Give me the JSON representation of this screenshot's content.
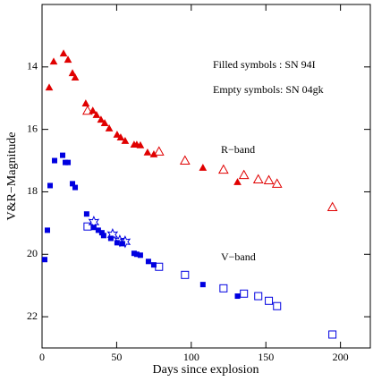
{
  "chart_data": {
    "type": "scatter",
    "xlabel": "Days since explosion",
    "ylabel": "V&R−Magnitude",
    "annotations": [
      "Filled symbols : SN 94I",
      "Empty symbols: SN 04gk",
      "R−band",
      "V−band"
    ],
    "xlim": [
      0,
      220
    ],
    "xticks": [
      0,
      50,
      100,
      150,
      200
    ],
    "ylim": [
      23,
      12
    ],
    "yticks": [
      14,
      16,
      18,
      20,
      22
    ],
    "series": [
      {
        "marker": "triangle",
        "filled": true,
        "color": "#e00000",
        "x": [
          4.8,
          7.8,
          14.4,
          17.4,
          20.4,
          22.2,
          29.3,
          34,
          36.5,
          39.5,
          42,
          45,
          50.3,
          52.7,
          55.7,
          61.7,
          63.5,
          65.9,
          70.7,
          74.9,
          107.8,
          131
        ],
        "values": [
          14.66,
          13.83,
          13.57,
          13.77,
          14.2,
          14.34,
          15.17,
          15.4,
          15.54,
          15.69,
          15.8,
          15.97,
          16.17,
          16.26,
          16.37,
          16.49,
          16.49,
          16.51,
          16.74,
          16.8,
          17.23,
          17.69
        ]
      },
      {
        "marker": "triangle",
        "filled": false,
        "color": "#e00000",
        "x": [
          30.5,
          78.4,
          95.8,
          121.6,
          135.3,
          144.9,
          152,
          157.5,
          194.6
        ],
        "values": [
          15.4,
          16.71,
          17.0,
          17.29,
          17.46,
          17.6,
          17.63,
          17.74,
          18.49
        ]
      },
      {
        "marker": "square",
        "filled": true,
        "color": "#0000e0",
        "x": [
          1.8,
          3.6,
          5.4,
          8.4,
          13.8,
          15.6,
          17.4,
          20.4,
          22.2,
          29.9,
          34.7,
          37.7,
          40.1,
          41.3,
          46.1,
          50.3,
          53.9,
          61.7,
          63.5,
          65.9,
          71.3,
          74.9,
          107.8,
          131
        ],
        "values": [
          20.17,
          19.23,
          17.8,
          17.0,
          16.83,
          17.06,
          17.06,
          17.74,
          17.86,
          18.71,
          19.14,
          19.23,
          19.31,
          19.4,
          19.49,
          19.63,
          19.66,
          19.97,
          20.0,
          20.03,
          20.23,
          20.34,
          20.97,
          21.34
        ]
      },
      {
        "marker": "square",
        "filled": false,
        "color": "#0000e0",
        "x": [
          30.5,
          78.4,
          95.8,
          121.6,
          135.3,
          144.9,
          152,
          157.5,
          194.6
        ],
        "values": [
          19.11,
          20.4,
          20.66,
          21.09,
          21.26,
          21.34,
          21.49,
          21.66,
          22.57
        ]
      },
      {
        "marker": "star",
        "filled": false,
        "color": "#0000e0",
        "x": [
          34.7,
          47.3,
          52.1,
          55.7
        ],
        "values": [
          18.97,
          19.37,
          19.57,
          19.6
        ]
      }
    ]
  }
}
